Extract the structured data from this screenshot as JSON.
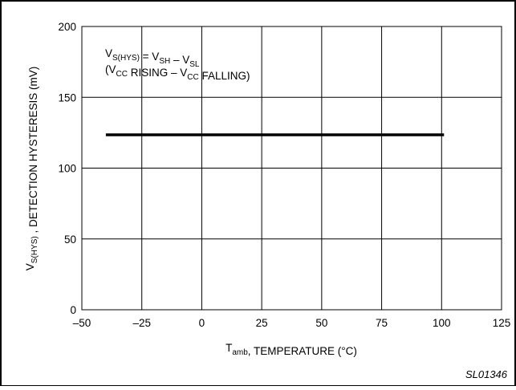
{
  "chart_data": {
    "type": "line",
    "title": "",
    "xlabel": {
      "main": "T",
      "sub": "amb",
      "rest": ", TEMPERATURE (°C)"
    },
    "ylabel": {
      "main": "V",
      "sub": "S(HYS)",
      "rest": " , DETECTION HYSTERESIS (mV)"
    },
    "xlim": [
      -50,
      125
    ],
    "ylim": [
      0,
      200
    ],
    "x_ticks": [
      -50,
      -25,
      0,
      25,
      50,
      75,
      100,
      125
    ],
    "x_tick_labels": [
      "–50",
      "–25",
      "0",
      "25",
      "50",
      "75",
      "100",
      "125"
    ],
    "y_ticks": [
      0,
      50,
      100,
      150,
      200
    ],
    "y_tick_labels": [
      "0",
      "50",
      "100",
      "150",
      "200"
    ],
    "grid": true,
    "series": [
      {
        "x": [
          -40,
          101
        ],
        "y": [
          123.5,
          123.5
        ],
        "color": "#000000"
      }
    ],
    "annotation": {
      "line1": [
        {
          "t": "V",
          "s": ""
        },
        {
          "t": "S(HYS)",
          "s": "sub"
        },
        {
          "t": " = V",
          "s": ""
        },
        {
          "t": "SH",
          "s": "sub"
        },
        {
          "t": " – V",
          "s": ""
        },
        {
          "t": "SL",
          "s": "sub"
        }
      ],
      "line2": [
        {
          "t": "(V",
          "s": ""
        },
        {
          "t": "CC",
          "s": "sub"
        },
        {
          "t": " RISING – V",
          "s": ""
        },
        {
          "t": "CC",
          "s": "sub"
        },
        {
          "t": " FALLING)",
          "s": ""
        }
      ]
    }
  },
  "figure_id": "SL01346"
}
